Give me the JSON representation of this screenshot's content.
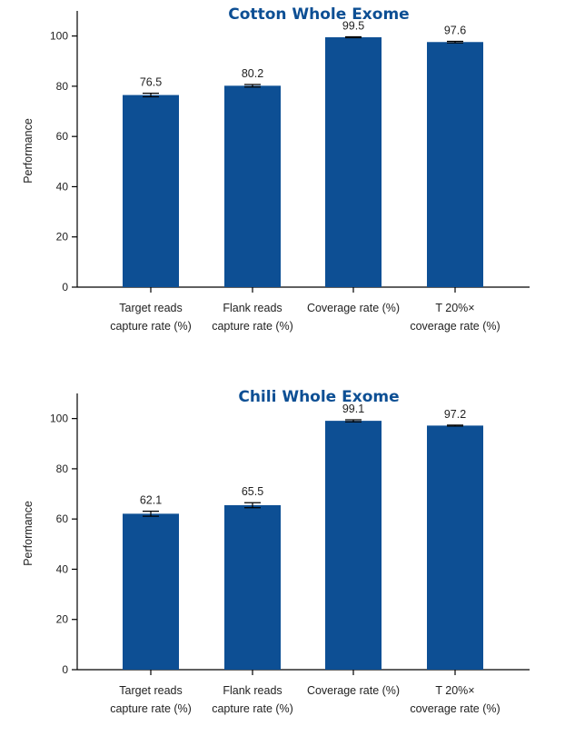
{
  "chart_data": [
    {
      "type": "bar",
      "title": "Cotton Whole Exome",
      "ylabel": "Performance",
      "xlabel": "",
      "ylim": [
        0,
        110
      ],
      "yticks": [
        0,
        20,
        40,
        60,
        80,
        100
      ],
      "categories": [
        [
          "Target reads",
          "capture rate (%)"
        ],
        [
          "Flank reads",
          "capture rate (%)"
        ],
        [
          "Coverage rate (%)"
        ],
        [
          "T 20%×",
          "coverage rate (%)"
        ]
      ],
      "values": [
        76.5,
        80.2,
        99.5,
        97.6
      ],
      "value_labels": [
        "76.5",
        "80.2",
        "99.5",
        "97.6"
      ],
      "error": [
        0.7,
        0.5,
        0.2,
        0.3
      ],
      "color": "#0d4f94"
    },
    {
      "type": "bar",
      "title": "Chili Whole Exome",
      "ylabel": "Performance",
      "xlabel": "",
      "ylim": [
        0,
        110
      ],
      "yticks": [
        0,
        20,
        40,
        60,
        80,
        100
      ],
      "categories": [
        [
          "Target reads",
          "capture rate (%)"
        ],
        [
          "Flank reads",
          "capture rate (%)"
        ],
        [
          "Coverage rate (%)"
        ],
        [
          "T 20%×",
          "coverage rate (%)"
        ]
      ],
      "values": [
        62.1,
        65.5,
        99.1,
        97.2
      ],
      "value_labels": [
        "62.1",
        "65.5",
        "99.1",
        "97.2"
      ],
      "error": [
        1.0,
        1.0,
        0.4,
        0.2
      ],
      "color": "#0d4f94"
    }
  ]
}
